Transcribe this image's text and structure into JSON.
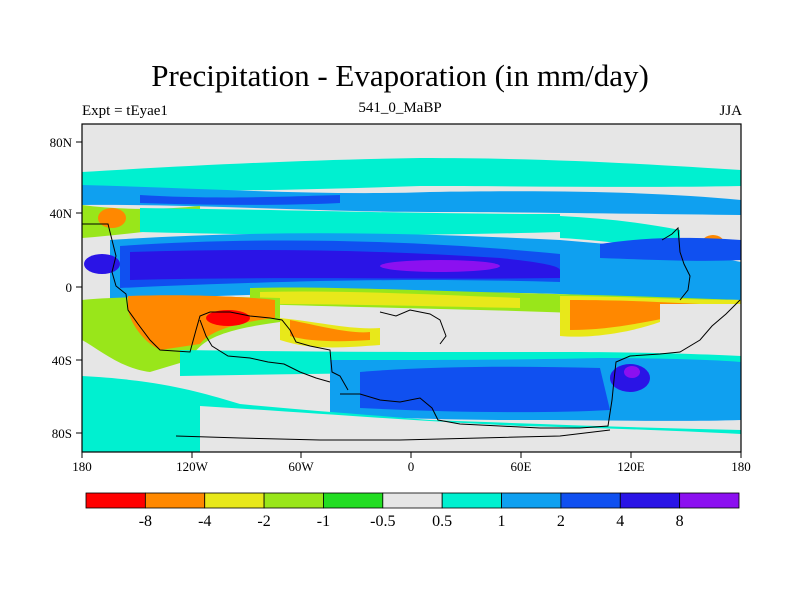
{
  "title": "Precipitation - Evaporation (in mm/day)",
  "left_label": "Expt = tEyae1",
  "center_label": "541_0_MaBP",
  "right_label": "JJA",
  "x_ticks": [
    "180",
    "120W",
    "60W",
    "0",
    "60E",
    "120E",
    "180"
  ],
  "y_ticks": [
    "80N",
    "40N",
    "0",
    "40S",
    "80S"
  ],
  "colorbar": {
    "colors": [
      "#ff0000",
      "#ff8800",
      "#e8e81a",
      "#99e61a",
      "#22dd22",
      "#e6e6e6",
      "#00f0d0",
      "#0fa0f0",
      "#1050f0",
      "#2a14e6",
      "#8c10f0"
    ],
    "labels": [
      "-8",
      "-4",
      "-2",
      "-1",
      "-0.5",
      "0.5",
      "1",
      "2",
      "4",
      "8"
    ]
  }
}
